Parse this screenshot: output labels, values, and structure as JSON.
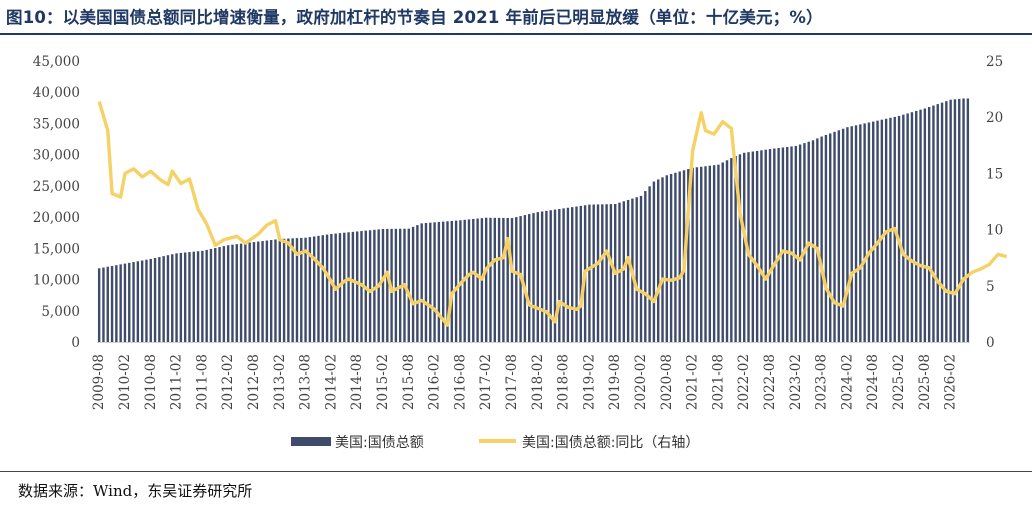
{
  "header": {
    "title": "图10：以美国国债总额同比增速衡量，政府加杠杆的节奏自 2021 年前后已明显放缓（单位：十亿美元；%）"
  },
  "footer": {
    "source": "数据来源：Wind，东吴证券研究所"
  },
  "colors": {
    "bar": "#3f4b6b",
    "line": "#f5d166",
    "title": "#1f3864"
  },
  "chart_data": {
    "type": "bar",
    "x_ticks": [
      "2009-08",
      "2010-02",
      "2010-08",
      "2011-02",
      "2011-08",
      "2012-02",
      "2012-08",
      "2013-02",
      "2013-08",
      "2014-02",
      "2014-08",
      "2015-02",
      "2015-08",
      "2016-02",
      "2016-08",
      "2017-02",
      "2017-08",
      "2018-02",
      "2018-08",
      "2019-02",
      "2019-08",
      "2020-02",
      "2020-08",
      "2021-02",
      "2021-08",
      "2022-02",
      "2022-08",
      "2023-02",
      "2023-08",
      "2024-02",
      "2024-08",
      "2025-02",
      "2025-08",
      "2026-02"
    ],
    "ylim_left": [
      0,
      45000
    ],
    "yticks_left": [
      "0",
      "5,000",
      "10,000",
      "15,000",
      "20,000",
      "25,000",
      "30,000",
      "35,000",
      "40,000",
      "45,000"
    ],
    "ylim_right": [
      0,
      25
    ],
    "yticks_right": [
      "0",
      "5",
      "10",
      "15",
      "20",
      "25"
    ],
    "grid": false,
    "legend_position": "bottom",
    "series": [
      {
        "name": "美国:国债总额",
        "type": "bar",
        "axis": "left",
        "anchors": [
          {
            "x": "2009-08",
            "y": 11800
          },
          {
            "x": "2010-08",
            "y": 13300
          },
          {
            "x": "2011-02",
            "y": 14200
          },
          {
            "x": "2011-08",
            "y": 14600
          },
          {
            "x": "2012-02",
            "y": 15500
          },
          {
            "x": "2012-08",
            "y": 16000
          },
          {
            "x": "2013-02",
            "y": 16500
          },
          {
            "x": "2013-08",
            "y": 16700
          },
          {
            "x": "2014-02",
            "y": 17300
          },
          {
            "x": "2014-08",
            "y": 17700
          },
          {
            "x": "2015-02",
            "y": 18100
          },
          {
            "x": "2015-08",
            "y": 18150
          },
          {
            "x": "2015-11",
            "y": 19000
          },
          {
            "x": "2016-08",
            "y": 19500
          },
          {
            "x": "2017-02",
            "y": 19900
          },
          {
            "x": "2017-08",
            "y": 19850
          },
          {
            "x": "2018-02",
            "y": 20800
          },
          {
            "x": "2018-08",
            "y": 21400
          },
          {
            "x": "2019-02",
            "y": 22000
          },
          {
            "x": "2019-08",
            "y": 22100
          },
          {
            "x": "2020-02",
            "y": 23400
          },
          {
            "x": "2020-05",
            "y": 25700
          },
          {
            "x": "2020-08",
            "y": 26700
          },
          {
            "x": "2021-02",
            "y": 27900
          },
          {
            "x": "2021-08",
            "y": 28400
          },
          {
            "x": "2021-12",
            "y": 29800
          },
          {
            "x": "2022-02",
            "y": 30300
          },
          {
            "x": "2022-08",
            "y": 30900
          },
          {
            "x": "2023-02",
            "y": 31400
          },
          {
            "x": "2023-06",
            "y": 32300
          },
          {
            "x": "2023-08",
            "y": 32900
          },
          {
            "x": "2024-02",
            "y": 34400
          },
          {
            "x": "2024-08",
            "y": 35300
          },
          {
            "x": "2025-02",
            "y": 36200
          },
          {
            "x": "2025-08",
            "y": 37400
          },
          {
            "x": "2026-02",
            "y": 38800
          },
          {
            "x": "2026-05",
            "y": 39000
          }
        ]
      },
      {
        "name": "美国:国债总额:同比（右轴）",
        "type": "line",
        "axis": "right",
        "anchors": [
          {
            "x": "2009-08",
            "y": 21.4
          },
          {
            "x": "2009-10",
            "y": 18.8
          },
          {
            "x": "2009-11",
            "y": 13.2
          },
          {
            "x": "2010-01",
            "y": 12.9
          },
          {
            "x": "2010-02",
            "y": 15.0
          },
          {
            "x": "2010-04",
            "y": 15.4
          },
          {
            "x": "2010-06",
            "y": 14.7
          },
          {
            "x": "2010-08",
            "y": 15.2
          },
          {
            "x": "2010-10",
            "y": 14.5
          },
          {
            "x": "2010-12",
            "y": 14.0
          },
          {
            "x": "2011-01",
            "y": 15.2
          },
          {
            "x": "2011-03",
            "y": 14.1
          },
          {
            "x": "2011-05",
            "y": 14.5
          },
          {
            "x": "2011-07",
            "y": 11.8
          },
          {
            "x": "2011-09",
            "y": 10.5
          },
          {
            "x": "2011-11",
            "y": 8.6
          },
          {
            "x": "2012-01",
            "y": 9.1
          },
          {
            "x": "2012-04",
            "y": 9.4
          },
          {
            "x": "2012-06",
            "y": 8.8
          },
          {
            "x": "2012-09",
            "y": 9.6
          },
          {
            "x": "2012-11",
            "y": 10.4
          },
          {
            "x": "2013-01",
            "y": 10.8
          },
          {
            "x": "2013-02",
            "y": 9.1
          },
          {
            "x": "2013-04",
            "y": 8.8
          },
          {
            "x": "2013-06",
            "y": 7.8
          },
          {
            "x": "2013-08",
            "y": 8.1
          },
          {
            "x": "2013-10",
            "y": 7.4
          },
          {
            "x": "2013-12",
            "y": 6.6
          },
          {
            "x": "2014-01",
            "y": 6.0
          },
          {
            "x": "2014-03",
            "y": 4.7
          },
          {
            "x": "2014-05",
            "y": 5.4
          },
          {
            "x": "2014-06",
            "y": 5.6
          },
          {
            "x": "2014-09",
            "y": 5.1
          },
          {
            "x": "2014-11",
            "y": 4.5
          },
          {
            "x": "2015-01",
            "y": 5.0
          },
          {
            "x": "2015-03",
            "y": 6.2
          },
          {
            "x": "2015-04",
            "y": 4.5
          },
          {
            "x": "2015-07",
            "y": 5.1
          },
          {
            "x": "2015-09",
            "y": 3.4
          },
          {
            "x": "2015-11",
            "y": 3.7
          },
          {
            "x": "2016-02",
            "y": 2.9
          },
          {
            "x": "2016-05",
            "y": 1.5
          },
          {
            "x": "2016-06",
            "y": 4.3
          },
          {
            "x": "2016-08",
            "y": 5.2
          },
          {
            "x": "2016-10",
            "y": 6.0
          },
          {
            "x": "2016-11",
            "y": 6.2
          },
          {
            "x": "2017-01",
            "y": 5.6
          },
          {
            "x": "2017-02",
            "y": 6.5
          },
          {
            "x": "2017-04",
            "y": 7.3
          },
          {
            "x": "2017-06",
            "y": 7.5
          },
          {
            "x": "2017-07",
            "y": 9.2
          },
          {
            "x": "2017-08",
            "y": 6.3
          },
          {
            "x": "2017-10",
            "y": 6.0
          },
          {
            "x": "2017-12",
            "y": 3.3
          },
          {
            "x": "2018-02",
            "y": 3.0
          },
          {
            "x": "2018-04",
            "y": 2.7
          },
          {
            "x": "2018-06",
            "y": 1.8
          },
          {
            "x": "2018-07",
            "y": 3.6
          },
          {
            "x": "2018-09",
            "y": 3.1
          },
          {
            "x": "2018-11",
            "y": 2.9
          },
          {
            "x": "2018-12",
            "y": 3.2
          },
          {
            "x": "2019-01",
            "y": 6.3
          },
          {
            "x": "2019-04",
            "y": 7.0
          },
          {
            "x": "2019-06",
            "y": 8.1
          },
          {
            "x": "2019-08",
            "y": 6.1
          },
          {
            "x": "2019-10",
            "y": 6.5
          },
          {
            "x": "2019-11",
            "y": 7.5
          },
          {
            "x": "2020-01",
            "y": 4.7
          },
          {
            "x": "2020-03",
            "y": 4.3
          },
          {
            "x": "2020-05",
            "y": 3.6
          },
          {
            "x": "2020-07",
            "y": 5.6
          },
          {
            "x": "2020-09",
            "y": 5.5
          },
          {
            "x": "2020-11",
            "y": 5.7
          },
          {
            "x": "2020-12",
            "y": 6.4
          },
          {
            "x": "2021-02",
            "y": 17.0
          },
          {
            "x": "2021-04",
            "y": 20.4
          },
          {
            "x": "2021-05",
            "y": 18.8
          },
          {
            "x": "2021-07",
            "y": 18.5
          },
          {
            "x": "2021-09",
            "y": 19.6
          },
          {
            "x": "2021-11",
            "y": 19.0
          },
          {
            "x": "2022-01",
            "y": 11.5
          },
          {
            "x": "2022-03",
            "y": 7.8
          },
          {
            "x": "2022-05",
            "y": 6.8
          },
          {
            "x": "2022-07",
            "y": 5.6
          },
          {
            "x": "2022-09",
            "y": 6.9
          },
          {
            "x": "2022-11",
            "y": 8.1
          },
          {
            "x": "2023-01",
            "y": 7.9
          },
          {
            "x": "2023-03",
            "y": 7.3
          },
          {
            "x": "2023-05",
            "y": 8.8
          },
          {
            "x": "2023-07",
            "y": 8.3
          },
          {
            "x": "2023-09",
            "y": 4.8
          },
          {
            "x": "2023-11",
            "y": 3.5
          },
          {
            "x": "2024-01",
            "y": 3.2
          },
          {
            "x": "2024-03",
            "y": 6.1
          },
          {
            "x": "2024-05",
            "y": 6.6
          },
          {
            "x": "2024-07",
            "y": 7.9
          },
          {
            "x": "2024-09",
            "y": 8.8
          },
          {
            "x": "2024-11",
            "y": 9.8
          },
          {
            "x": "2025-01",
            "y": 10.1
          },
          {
            "x": "2025-03",
            "y": 7.8
          },
          {
            "x": "2025-05",
            "y": 7.2
          },
          {
            "x": "2025-07",
            "y": 6.8
          },
          {
            "x": "2025-09",
            "y": 6.6
          },
          {
            "x": "2025-11",
            "y": 5.4
          },
          {
            "x": "2026-01",
            "y": 4.5
          },
          {
            "x": "2026-03",
            "y": 4.3
          },
          {
            "x": "2026-05",
            "y": 5.6
          },
          {
            "x": "2026-07",
            "y": 6.2
          },
          {
            "x": "2026-09",
            "y": 6.5
          },
          {
            "x": "2026-11",
            "y": 6.9
          },
          {
            "x": "2027-01",
            "y": 7.8
          },
          {
            "x": "2027-03",
            "y": 7.6
          }
        ]
      }
    ]
  }
}
